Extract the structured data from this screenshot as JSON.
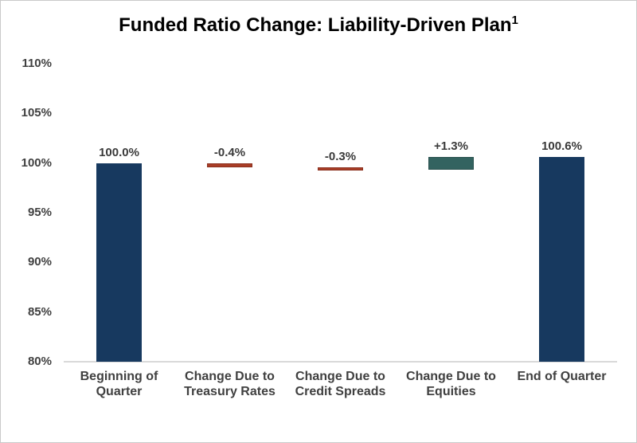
{
  "title": {
    "text": "Funded Ratio Change: Liability-Driven Plan",
    "superscript": "1"
  },
  "chart_data": {
    "type": "bar",
    "subtype": "waterfall",
    "title": "Funded Ratio Change: Liability-Driven Plan",
    "title_superscript": "1",
    "xlabel": "",
    "ylabel": "",
    "ylim": [
      80,
      110
    ],
    "grid": false,
    "legend": false,
    "yticks": [
      {
        "value": 110,
        "label": "110%"
      },
      {
        "value": 105,
        "label": "105%"
      },
      {
        "value": 100,
        "label": "100%"
      },
      {
        "value": 95,
        "label": "95%"
      },
      {
        "value": 90,
        "label": "90%"
      },
      {
        "value": 85,
        "label": "85%"
      },
      {
        "value": 80,
        "label": "80%"
      }
    ],
    "categories": [
      "Beginning of Quarter",
      "Change Due to Treasury Rates",
      "Change Due to Credit Spreads",
      "Change Due to Equities",
      "End of Quarter"
    ],
    "bars": [
      {
        "name": "beginning-of-quarter",
        "label": "Beginning of Quarter",
        "data_label": "100.0%",
        "start": 80,
        "end": 100,
        "role": "total"
      },
      {
        "name": "treasury-rates-change",
        "label": "Change Due to Treasury Rates",
        "data_label": "-0.4%",
        "start": 100,
        "end": 99.6,
        "role": "decrease"
      },
      {
        "name": "credit-spreads-change",
        "label": "Change Due to Credit Spreads",
        "data_label": "-0.3%",
        "start": 99.6,
        "end": 99.3,
        "role": "decrease"
      },
      {
        "name": "equities-change",
        "label": "Change Due to Equities",
        "data_label": "+1.3%",
        "start": 99.3,
        "end": 100.6,
        "role": "increase"
      },
      {
        "name": "end-of-quarter",
        "label": "End of Quarter",
        "data_label": "100.6%",
        "start": 80,
        "end": 100.6,
        "role": "total"
      }
    ],
    "colors": {
      "total": "#17395F",
      "decrease": "#A93D26",
      "decrease_border": "#8A3120",
      "increase": "#336360",
      "increase_border": "#28504d",
      "axis_line": "#D9D9D9",
      "tick_text": "#404040",
      "label_text": "#3a3a3a",
      "title_text": "#000000"
    }
  }
}
